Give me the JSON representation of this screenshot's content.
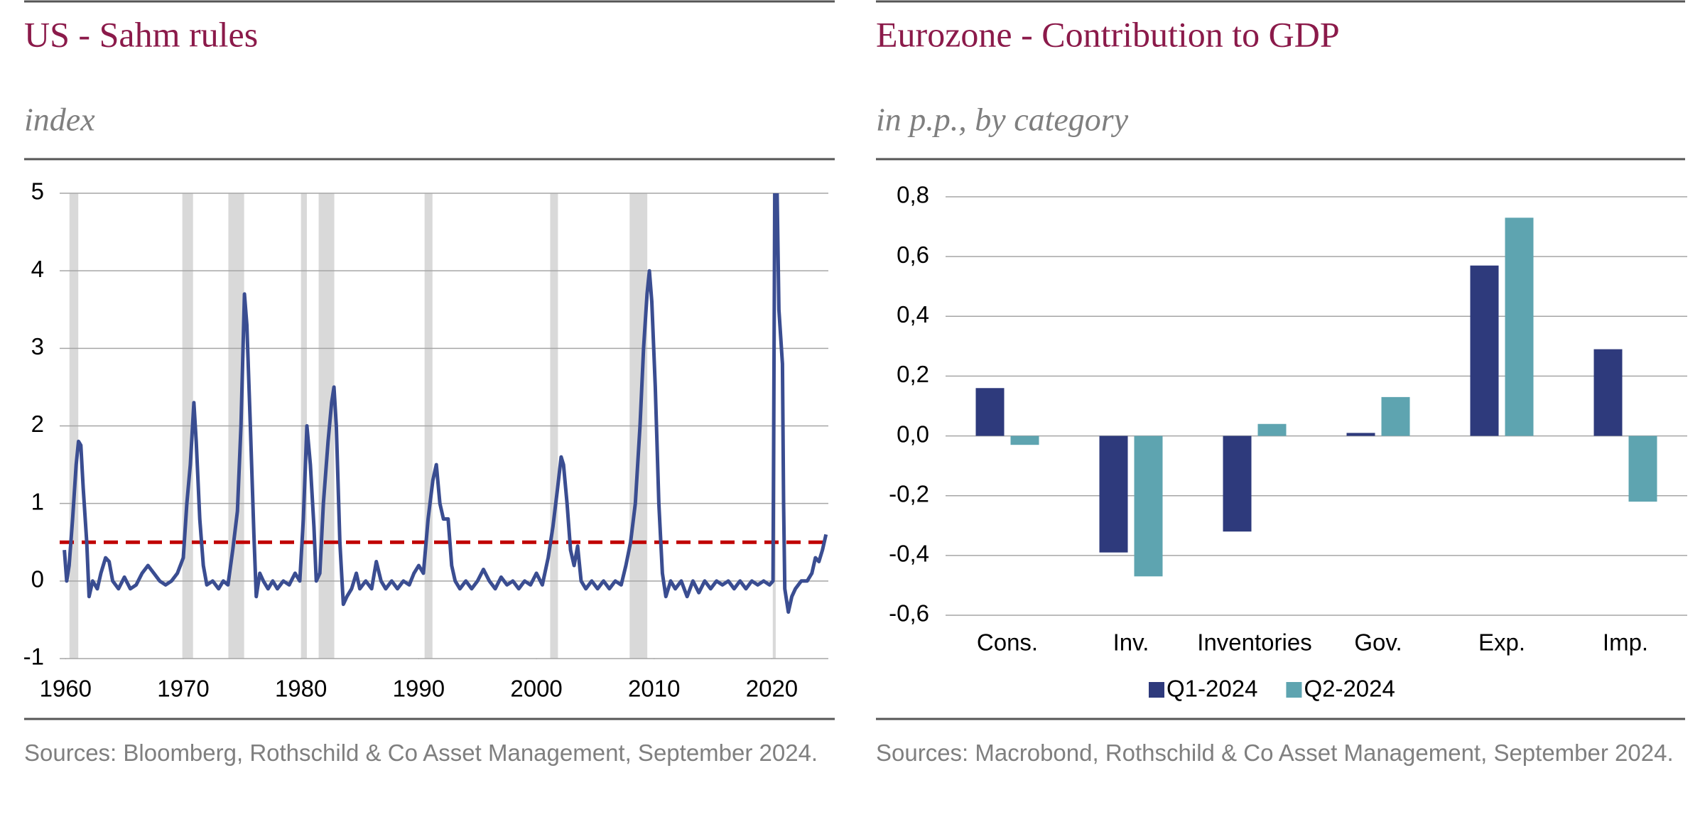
{
  "chart_data": [
    {
      "type": "line",
      "title": "US - Sahm rules",
      "subtitle": "index",
      "source": "Sources: Bloomberg, Rothschild & Co Asset Management, September 2024.",
      "x": [
        1959.9,
        1960.1,
        1960.3,
        1960.6,
        1960.9,
        1961.1,
        1961.3,
        1961.5,
        1961.8,
        1962.0,
        1962.3,
        1962.7,
        1963.0,
        1963.4,
        1963.7,
        1964.0,
        1964.5,
        1965.0,
        1965.5,
        1966.0,
        1966.5,
        1967.0,
        1967.5,
        1968.0,
        1968.5,
        1969.0,
        1969.5,
        1970.0,
        1970.3,
        1970.6,
        1970.9,
        1971.1,
        1971.4,
        1971.7,
        1972.0,
        1972.5,
        1973.0,
        1973.4,
        1973.8,
        1974.2,
        1974.6,
        1974.9,
        1975.2,
        1975.4,
        1975.7,
        1976.0,
        1976.2,
        1976.5,
        1976.8,
        1977.2,
        1977.6,
        1978.0,
        1978.5,
        1979.0,
        1979.5,
        1979.9,
        1980.2,
        1980.5,
        1980.8,
        1981.1,
        1981.3,
        1981.6,
        1981.9,
        1982.3,
        1982.6,
        1982.8,
        1983.0,
        1983.3,
        1983.6,
        1983.9,
        1984.3,
        1984.7,
        1985.0,
        1985.5,
        1986.0,
        1986.4,
        1986.8,
        1987.2,
        1987.7,
        1988.2,
        1988.7,
        1989.2,
        1989.6,
        1990.0,
        1990.4,
        1990.8,
        1991.2,
        1991.5,
        1991.8,
        1992.1,
        1992.5,
        1992.8,
        1993.1,
        1993.5,
        1994.0,
        1994.5,
        1995.0,
        1995.5,
        1996.0,
        1996.5,
        1997.0,
        1997.5,
        1998.0,
        1998.5,
        1999.0,
        1999.5,
        2000.0,
        2000.5,
        2001.0,
        2001.4,
        2001.8,
        2002.1,
        2002.3,
        2002.6,
        2002.9,
        2003.2,
        2003.5,
        2003.8,
        2004.2,
        2004.7,
        2005.2,
        2005.7,
        2006.2,
        2006.7,
        2007.2,
        2007.6,
        2008.0,
        2008.4,
        2008.8,
        2009.1,
        2009.4,
        2009.6,
        2009.8,
        2010.1,
        2010.4,
        2010.7,
        2011.0,
        2011.4,
        2011.8,
        2012.3,
        2012.8,
        2013.3,
        2013.8,
        2014.3,
        2014.8,
        2015.3,
        2015.8,
        2016.3,
        2016.8,
        2017.3,
        2017.8,
        2018.3,
        2018.8,
        2019.3,
        2019.8,
        2020.1,
        2020.25,
        2020.45,
        2020.6,
        2020.9,
        2021.0,
        2021.1,
        2021.4,
        2021.7,
        2022.0,
        2022.5,
        2023.0,
        2023.4,
        2023.7,
        2024.0,
        2024.3,
        2024.6
      ],
      "series": [
        {
          "color": "#3a4d91",
          "values": [
            0.4,
            0.0,
            0.2,
            0.8,
            1.5,
            1.8,
            1.75,
            1.2,
            0.5,
            -0.2,
            0.0,
            -0.1,
            0.1,
            0.3,
            0.25,
            0.0,
            -0.1,
            0.05,
            -0.1,
            -0.05,
            0.1,
            0.2,
            0.1,
            0.0,
            -0.05,
            0.0,
            0.1,
            0.3,
            1.0,
            1.5,
            2.3,
            1.8,
            0.8,
            0.2,
            -0.05,
            0.0,
            -0.1,
            0.0,
            -0.05,
            0.4,
            0.9,
            2.0,
            3.7,
            3.3,
            2.0,
            0.6,
            -0.2,
            0.1,
            0.0,
            -0.1,
            0.0,
            -0.1,
            0.0,
            -0.05,
            0.1,
            0.0,
            0.8,
            2.0,
            1.5,
            0.7,
            0.0,
            0.1,
            1.0,
            1.8,
            2.3,
            2.5,
            2.0,
            0.5,
            -0.3,
            -0.2,
            -0.1,
            0.1,
            -0.1,
            0.0,
            -0.1,
            0.25,
            0.0,
            -0.1,
            0.0,
            -0.1,
            0.0,
            -0.05,
            0.1,
            0.2,
            0.1,
            0.8,
            1.3,
            1.5,
            1.0,
            0.8,
            0.8,
            0.2,
            0.0,
            -0.1,
            0.0,
            -0.1,
            0.0,
            0.15,
            0.0,
            -0.1,
            0.05,
            -0.05,
            0.0,
            -0.1,
            0.0,
            -0.05,
            0.1,
            -0.05,
            0.3,
            0.7,
            1.2,
            1.6,
            1.5,
            1.0,
            0.4,
            0.2,
            0.45,
            0.0,
            -0.1,
            0.0,
            -0.1,
            0.0,
            -0.1,
            0.0,
            -0.05,
            0.2,
            0.5,
            1.0,
            2.0,
            3.0,
            3.7,
            4.0,
            3.6,
            2.5,
            1.0,
            0.1,
            -0.2,
            0.0,
            -0.1,
            0.0,
            -0.2,
            0.0,
            -0.15,
            0.0,
            -0.1,
            0.0,
            -0.05,
            0.0,
            -0.1,
            0.0,
            -0.1,
            0.0,
            -0.05,
            0.0,
            -0.05,
            0.0,
            5,
            5,
            3.5,
            2.8,
            1.0,
            -0.1,
            -0.4,
            -0.2,
            -0.1,
            0.0,
            0.0,
            0.1,
            0.3,
            0.25,
            0.4,
            0.6
          ]
        }
      ],
      "shaded_periods": [
        [
          1960.33,
          1961.08
        ],
        [
          1969.92,
          1970.83
        ],
        [
          1973.83,
          1975.17
        ],
        [
          1980.0,
          1980.5
        ],
        [
          1981.5,
          1982.83
        ],
        [
          1990.5,
          1991.17
        ],
        [
          2001.17,
          2001.83
        ],
        [
          2007.92,
          2009.42
        ],
        [
          2020.08,
          2020.33
        ]
      ],
      "shade_color": "#d9d9d9",
      "threshold": 0.5,
      "threshold_color": "#c00000",
      "xlim": [
        1959.5,
        2024.8
      ],
      "xticks": [
        1960,
        1970,
        1980,
        1990,
        2000,
        2010,
        2020
      ],
      "ylim": [
        -1,
        5
      ],
      "yticks": [
        -1,
        0,
        1,
        2,
        3,
        4,
        5
      ],
      "grid": true
    },
    {
      "type": "bar",
      "title": "Eurozone - Contribution to GDP",
      "subtitle": "in p.p., by category",
      "source": "Sources: Macrobond, Rothschild & Co Asset Management, September 2024.",
      "categories": [
        "Cons.",
        "Inv.",
        "Inventories",
        "Gov.",
        "Exp.",
        "Imp."
      ],
      "series": [
        {
          "name": "Q1-2024",
          "color": "#2e3a7c",
          "values": [
            0.16,
            -0.39,
            -0.32,
            0.01,
            0.57,
            0.29
          ]
        },
        {
          "name": "Q2-2024",
          "color": "#5ea4b0",
          "values": [
            -0.03,
            -0.47,
            0.04,
            0.13,
            0.73,
            -0.22
          ]
        }
      ],
      "ylim": [
        -0.6,
        0.8
      ],
      "yticks": [
        {
          "value": -0.6,
          "label": "-0,6"
        },
        {
          "value": -0.4,
          "label": "-0,4"
        },
        {
          "value": -0.2,
          "label": "-0,2"
        },
        {
          "value": 0,
          "label": "0,0"
        },
        {
          "value": 0.2,
          "label": "0,2"
        },
        {
          "value": 0.4,
          "label": "0,4"
        },
        {
          "value": 0.6,
          "label": "0,6"
        },
        {
          "value": 0.8,
          "label": "0,8"
        }
      ],
      "grid": true,
      "legend": "bottom"
    }
  ]
}
